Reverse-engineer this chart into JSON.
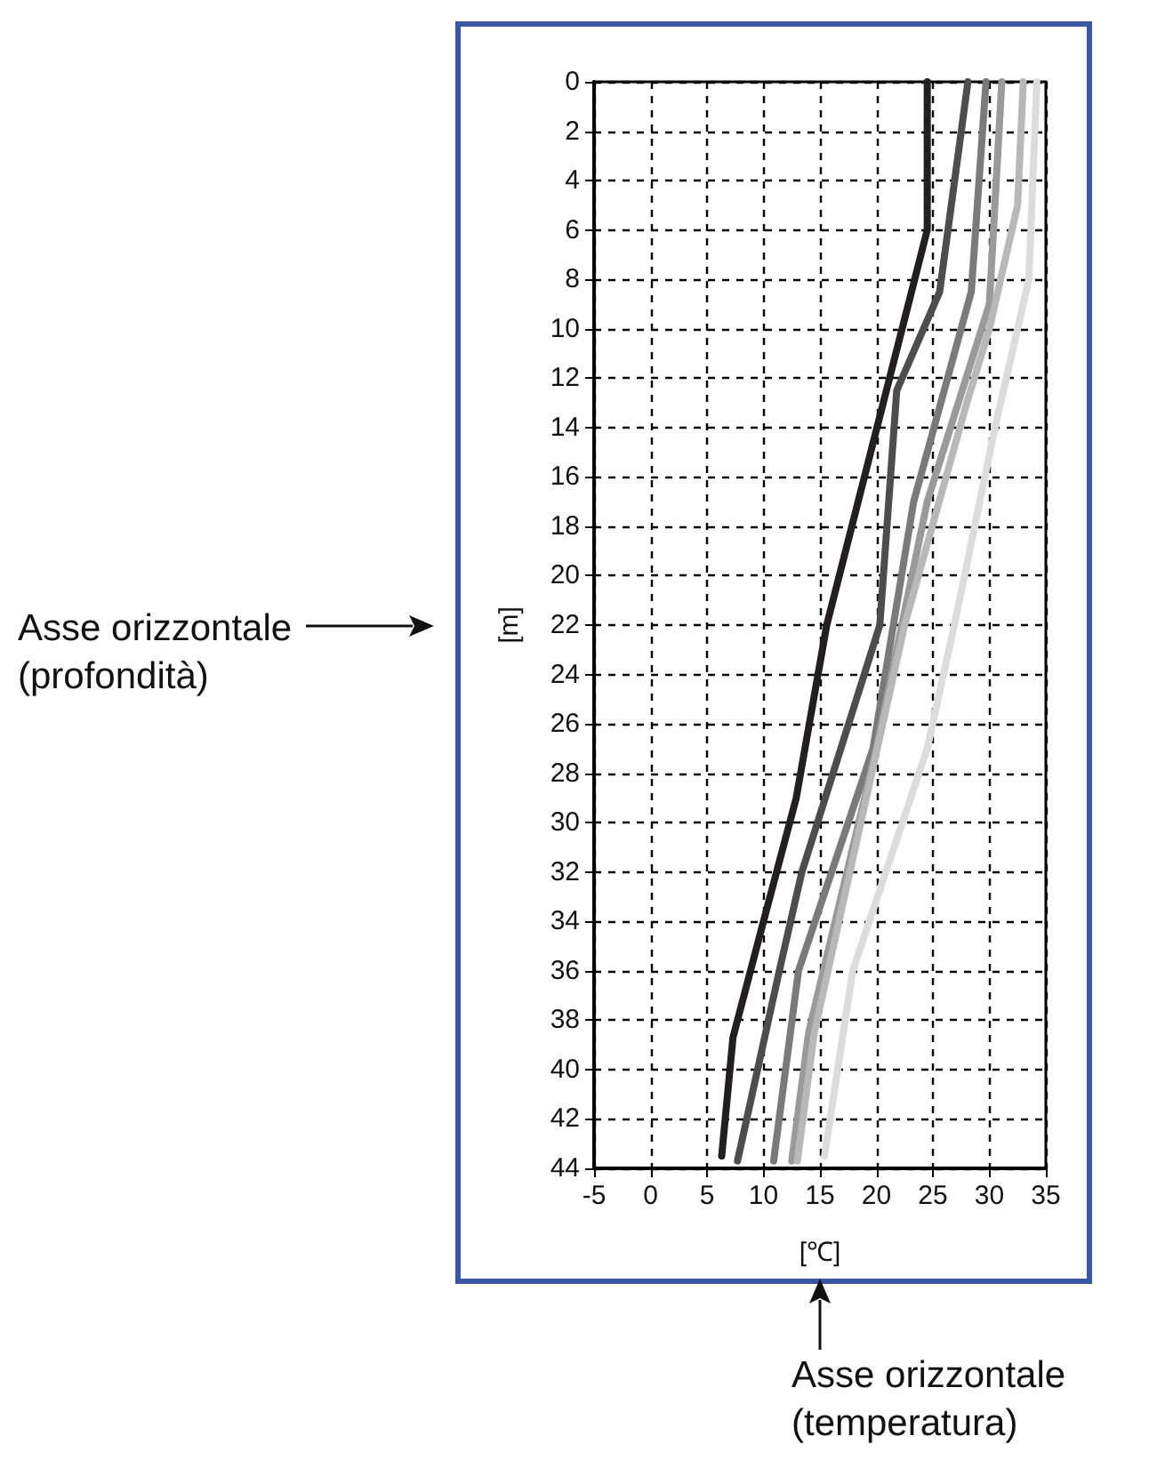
{
  "chart_data": {
    "type": "line",
    "xlabel": "[℃]",
    "ylabel": "[m]",
    "xlim": [
      -5,
      35
    ],
    "xticks": [
      -5,
      0,
      5,
      10,
      15,
      20,
      25,
      30,
      35
    ],
    "ylim": [
      44,
      0
    ],
    "yticks": [
      0,
      2,
      4,
      6,
      8,
      10,
      12,
      14,
      16,
      18,
      20,
      22,
      24,
      26,
      28,
      30,
      32,
      34,
      36,
      38,
      40,
      42,
      44
    ],
    "grid": true,
    "line_style": "solid",
    "marker": "none",
    "annotations": [
      "Asse orizzontale\n(profondità)",
      "Asse orizzontale\n(temperatura)"
    ],
    "series": [
      {
        "color": "#231f20",
        "x": [
          24.5,
          24.5,
          15.6,
          12.9,
          10,
          7.3,
          6.3
        ],
        "values": [
          0,
          6,
          22,
          29,
          34,
          38.7,
          43.5
        ]
      },
      {
        "color": "#4d4d4d",
        "x": [
          28.1,
          25.6,
          21.8,
          20.3,
          13.4,
          11.4,
          7.7
        ],
        "values": [
          0,
          8.5,
          12.5,
          22,
          32,
          36,
          43.7
        ]
      },
      {
        "color": "#7a7a7a",
        "x": [
          29.7,
          28.4,
          23.3,
          19.7,
          13.1,
          10.9
        ],
        "values": [
          0,
          8.5,
          17,
          27,
          36,
          43.7
        ]
      },
      {
        "color": "#9a9a9a",
        "x": [
          31.1,
          30,
          24.5,
          20,
          14,
          12.5
        ],
        "values": [
          0,
          9,
          17,
          27,
          38.5,
          43.7
        ]
      },
      {
        "color": "#b8b8b8",
        "x": [
          33,
          32.5,
          30,
          28,
          22.5,
          14.5,
          13
        ],
        "values": [
          0,
          5,
          10,
          13,
          22,
          38.5,
          43.7
        ]
      },
      {
        "color": "#dcdcdc",
        "x": [
          34.2,
          33.5,
          30.5,
          26.9,
          24.5,
          17.9,
          15.4
        ],
        "values": [
          0,
          8,
          14,
          22,
          27,
          36,
          43.5
        ]
      }
    ]
  }
}
